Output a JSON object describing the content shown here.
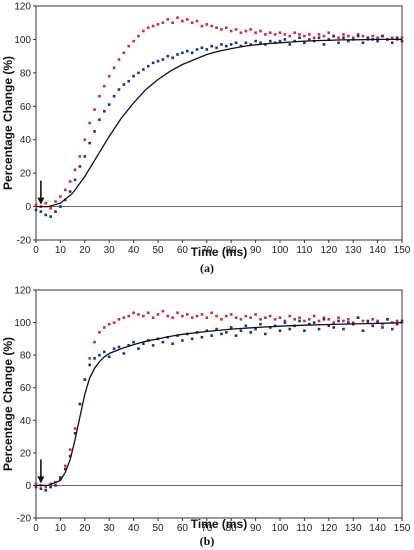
{
  "chart_data": [
    {
      "type": "scatter",
      "panel_label": "(a)",
      "xlabel": "Time (ms)",
      "ylabel": "Percentage Change (%)",
      "xlim": [
        0,
        150
      ],
      "ylim": [
        -20,
        120
      ],
      "xticks": [
        0,
        10,
        20,
        30,
        40,
        50,
        60,
        70,
        80,
        90,
        100,
        110,
        120,
        130,
        140,
        150
      ],
      "yticks": [
        -20,
        0,
        20,
        40,
        60,
        80,
        100,
        120
      ],
      "grid": false,
      "stimulus_marker_x": 2,
      "series": [
        {
          "color": "#d9263a",
          "marker": "dot",
          "x": [
            0,
            2,
            4,
            6,
            8,
            10,
            12,
            14,
            16,
            18,
            20,
            22,
            24,
            26,
            28,
            30,
            32,
            34,
            36,
            38,
            40,
            42,
            44,
            46,
            48,
            50,
            52,
            54,
            56,
            58,
            60,
            62,
            64,
            66,
            68,
            70,
            72,
            74,
            76,
            78,
            80,
            82,
            84,
            86,
            88,
            90,
            92,
            94,
            96,
            98,
            100,
            102,
            104,
            106,
            108,
            110,
            112,
            114,
            116,
            118,
            120,
            122,
            124,
            126,
            128,
            130,
            132,
            134,
            136,
            138,
            140,
            142,
            144,
            146,
            148,
            150
          ],
          "y": [
            1,
            0,
            2,
            -1,
            3,
            6,
            10,
            15,
            22,
            30,
            40,
            50,
            58,
            66,
            72,
            78,
            83,
            88,
            92,
            96,
            99,
            102,
            105,
            107,
            108,
            109,
            110,
            112,
            110,
            113,
            111,
            112,
            110,
            111,
            108,
            109,
            108,
            107,
            106,
            107,
            105,
            106,
            104,
            105,
            106,
            104,
            105,
            103,
            104,
            103,
            104,
            103,
            102,
            104,
            103,
            102,
            103,
            101,
            103,
            102,
            104,
            102,
            101,
            103,
            102,
            101,
            103,
            102,
            100,
            102,
            101,
            102,
            100,
            101,
            100,
            101
          ]
        },
        {
          "color": "#1f2f8a",
          "marker": "dot",
          "x": [
            0,
            2,
            4,
            6,
            8,
            10,
            12,
            14,
            16,
            18,
            20,
            22,
            24,
            26,
            28,
            30,
            32,
            34,
            36,
            38,
            40,
            42,
            44,
            46,
            48,
            50,
            52,
            54,
            56,
            58,
            60,
            62,
            64,
            66,
            68,
            70,
            72,
            74,
            76,
            78,
            80,
            82,
            84,
            86,
            88,
            90,
            92,
            94,
            96,
            98,
            100,
            102,
            104,
            106,
            108,
            110,
            112,
            114,
            116,
            118,
            120,
            122,
            124,
            126,
            128,
            130,
            132,
            134,
            136,
            138,
            140,
            142,
            144,
            146,
            148,
            150
          ],
          "y": [
            -2,
            -3,
            -5,
            -6,
            -3,
            0,
            4,
            9,
            16,
            24,
            30,
            38,
            45,
            52,
            57,
            61,
            66,
            70,
            73,
            75,
            78,
            80,
            82,
            84,
            86,
            87,
            88,
            90,
            89,
            91,
            92,
            93,
            92,
            94,
            95,
            94,
            96,
            95,
            97,
            96,
            97,
            98,
            96,
            98,
            97,
            99,
            98,
            97,
            99,
            98,
            99,
            100,
            97,
            99,
            101,
            98,
            100,
            99,
            101,
            97,
            100,
            102,
            98,
            101,
            99,
            100,
            102,
            98,
            101,
            100,
            99,
            102,
            100,
            98,
            101,
            99
          ]
        },
        {
          "color": "#111111",
          "marker": "line",
          "x": [
            0,
            5,
            10,
            15,
            20,
            25,
            30,
            35,
            40,
            45,
            50,
            55,
            60,
            65,
            70,
            75,
            80,
            85,
            90,
            95,
            100,
            105,
            110,
            115,
            120,
            125,
            130,
            135,
            140,
            145,
            150
          ],
          "y": [
            0,
            0,
            2,
            8,
            18,
            30,
            42,
            53,
            62,
            70,
            76,
            81,
            85,
            88,
            91,
            93,
            94.5,
            95.8,
            96.8,
            97.5,
            98,
            98.5,
            99,
            99.3,
            99.5,
            99.7,
            99.8,
            99.9,
            100,
            100,
            100
          ]
        }
      ]
    },
    {
      "type": "scatter",
      "panel_label": "(b)",
      "xlabel": "Time (ms)",
      "ylabel": "Percentage Change (%)",
      "xlim": [
        0,
        150
      ],
      "ylim": [
        -20,
        120
      ],
      "xticks": [
        0,
        10,
        20,
        30,
        40,
        50,
        60,
        70,
        80,
        90,
        100,
        110,
        120,
        130,
        140,
        150
      ],
      "yticks": [
        -20,
        0,
        20,
        40,
        60,
        80,
        100,
        120
      ],
      "grid": false,
      "stimulus_marker_x": 2,
      "series": [
        {
          "color": "#d9263a",
          "marker": "dot",
          "x": [
            0,
            2,
            4,
            6,
            8,
            10,
            12,
            14,
            16,
            18,
            20,
            22,
            24,
            26,
            28,
            30,
            32,
            34,
            36,
            38,
            40,
            42,
            44,
            46,
            48,
            50,
            52,
            54,
            56,
            58,
            60,
            62,
            64,
            66,
            68,
            70,
            72,
            74,
            76,
            78,
            80,
            82,
            84,
            86,
            88,
            90,
            92,
            94,
            96,
            98,
            100,
            102,
            104,
            106,
            108,
            110,
            112,
            114,
            116,
            118,
            120,
            122,
            124,
            126,
            128,
            130,
            132,
            134,
            136,
            138,
            140,
            142,
            144,
            146,
            148,
            150
          ],
          "y": [
            1,
            0,
            -1,
            1,
            2,
            5,
            12,
            22,
            35,
            50,
            65,
            78,
            88,
            94,
            97,
            99,
            100,
            102,
            103,
            104,
            106,
            105,
            104,
            106,
            103,
            105,
            107,
            104,
            103,
            106,
            104,
            105,
            103,
            104,
            105,
            103,
            106,
            104,
            102,
            104,
            105,
            103,
            102,
            104,
            103,
            105,
            102,
            103,
            104,
            102,
            103,
            101,
            104,
            102,
            103,
            101,
            102,
            104,
            101,
            103,
            102,
            100,
            103,
            101,
            102,
            100,
            103,
            101,
            100,
            102,
            101,
            99,
            102,
            100,
            101,
            100
          ]
        },
        {
          "color": "#1f2f8a",
          "marker": "dot",
          "x": [
            0,
            2,
            4,
            6,
            8,
            10,
            12,
            14,
            16,
            18,
            20,
            22,
            24,
            26,
            28,
            30,
            32,
            34,
            36,
            38,
            40,
            42,
            44,
            46,
            48,
            50,
            52,
            54,
            56,
            58,
            60,
            62,
            64,
            66,
            68,
            70,
            72,
            74,
            76,
            78,
            80,
            82,
            84,
            86,
            88,
            90,
            92,
            94,
            96,
            98,
            100,
            102,
            104,
            106,
            108,
            110,
            112,
            114,
            116,
            118,
            120,
            122,
            124,
            126,
            128,
            130,
            132,
            134,
            136,
            138,
            140,
            142,
            144,
            146,
            148,
            150
          ],
          "y": [
            -1,
            -2,
            -3,
            -1,
            0,
            4,
            10,
            18,
            32,
            50,
            65,
            74,
            78,
            80,
            82,
            79,
            84,
            85,
            81,
            86,
            88,
            84,
            87,
            89,
            86,
            90,
            88,
            91,
            87,
            92,
            89,
            93,
            90,
            94,
            91,
            95,
            92,
            96,
            93,
            94,
            97,
            92,
            95,
            98,
            94,
            96,
            99,
            93,
            97,
            98,
            95,
            100,
            96,
            98,
            101,
            95,
            99,
            100,
            96,
            102,
            98,
            97,
            101,
            96,
            100,
            99,
            103,
            95,
            101,
            98,
            100,
            97,
            102,
            96,
            99,
            101
          ]
        },
        {
          "color": "#111111",
          "marker": "line",
          "x": [
            0,
            5,
            10,
            12,
            14,
            16,
            18,
            20,
            22,
            24,
            26,
            28,
            30,
            35,
            40,
            45,
            50,
            55,
            60,
            70,
            80,
            90,
            100,
            110,
            120,
            130,
            140,
            150
          ],
          "y": [
            0,
            0,
            3,
            8,
            16,
            28,
            42,
            56,
            66,
            72,
            76,
            79,
            81,
            84,
            86.5,
            88.5,
            90,
            91.5,
            92.8,
            94.5,
            96,
            97,
            97.8,
            98.4,
            98.8,
            99.2,
            99.5,
            100
          ]
        }
      ]
    }
  ]
}
